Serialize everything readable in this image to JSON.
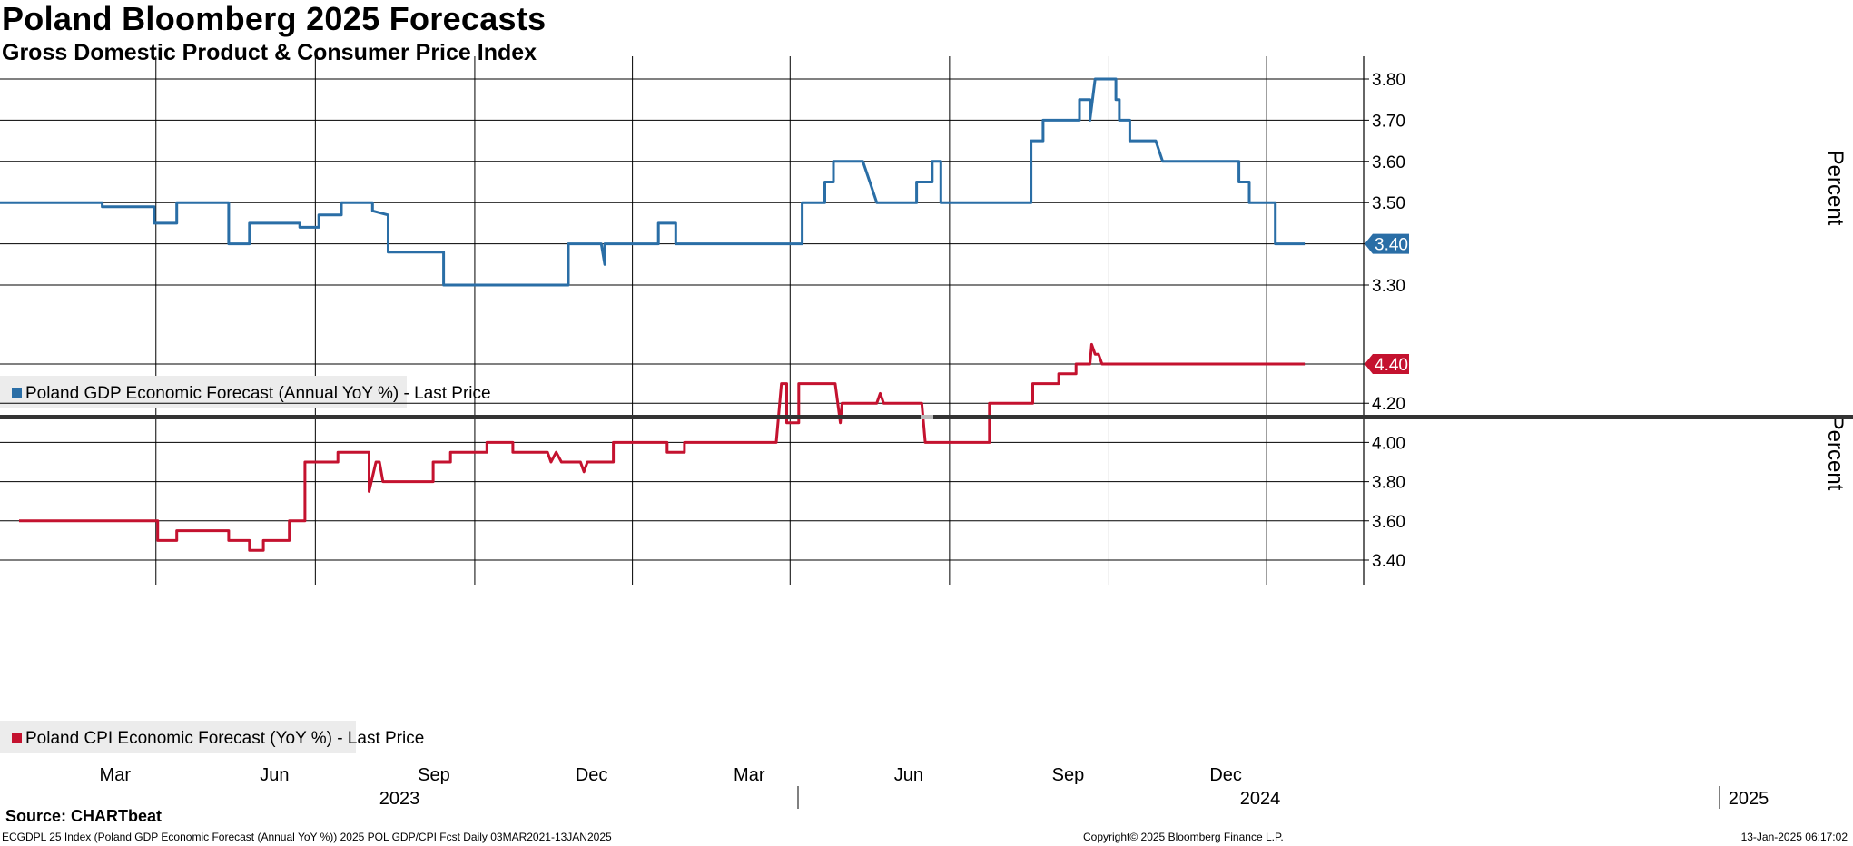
{
  "header": {
    "title": "Poland Bloomberg 2025 Forecasts",
    "subtitle": "Gross Domestic Product & Consumer Price Index"
  },
  "footer": {
    "source": "Source: CHARTbeat",
    "left": "ECGDPL 25 Index (Poland GDP Economic Forecast (Annual YoY %)) 2025 POL GDP/CPI Fcst  Daily 03MAR2021-13JAN2025",
    "center": "Copyright© 2025 Bloomberg Finance L.P.",
    "right": "13-Jan-2025 06:17:02"
  },
  "colors": {
    "gdp": "#2a6ea6",
    "cpi": "#c4122f",
    "grid": "#000000"
  },
  "chart_data": [
    {
      "type": "line",
      "x_axis": {
        "month_ticks": [
          "Mar",
          "Jun",
          "Sep",
          "Dec",
          "Mar",
          "Jun",
          "Sep",
          "Dec"
        ],
        "year_labels": [
          "2023",
          "2024",
          "2025"
        ]
      },
      "ylabel": "Percent",
      "ylim": [
        3.22,
        3.85
      ],
      "yticks": [
        3.3,
        3.4,
        3.5,
        3.6,
        3.7,
        3.8
      ],
      "ytick_labels": [
        "3.30",
        "3.40",
        "3.50",
        "3.60",
        "3.70",
        "3.80"
      ],
      "last_value_label": "3.40",
      "series": [
        {
          "name": "Poland GDP Economic Forecast (Annual YoY %) - Last Price",
          "points": [
            [
              "2022-12-01",
              3.5
            ],
            [
              "2023-01-29",
              3.5
            ],
            [
              "2023-01-29",
              3.49
            ],
            [
              "2023-02-28",
              3.49
            ],
            [
              "2023-02-28",
              3.45
            ],
            [
              "2023-03-13",
              3.45
            ],
            [
              "2023-03-13",
              3.5
            ],
            [
              "2023-04-12",
              3.5
            ],
            [
              "2023-04-12",
              3.4
            ],
            [
              "2023-04-24",
              3.4
            ],
            [
              "2023-04-24",
              3.45
            ],
            [
              "2023-05-23",
              3.45
            ],
            [
              "2023-05-23",
              3.44
            ],
            [
              "2023-06-03",
              3.44
            ],
            [
              "2023-06-03",
              3.47
            ],
            [
              "2023-06-16",
              3.47
            ],
            [
              "2023-06-16",
              3.5
            ],
            [
              "2023-07-04",
              3.5
            ],
            [
              "2023-07-04",
              3.48
            ],
            [
              "2023-07-13",
              3.47
            ],
            [
              "2023-07-13",
              3.38
            ],
            [
              "2023-08-14",
              3.38
            ],
            [
              "2023-08-14",
              3.3
            ],
            [
              "2023-10-25",
              3.3
            ],
            [
              "2023-10-25",
              3.4
            ],
            [
              "2023-11-13",
              3.4
            ],
            [
              "2023-11-15",
              3.35
            ],
            [
              "2023-11-15",
              3.4
            ],
            [
              "2023-12-16",
              3.4
            ],
            [
              "2023-12-16",
              3.45
            ],
            [
              "2023-12-26",
              3.45
            ],
            [
              "2023-12-26",
              3.4
            ],
            [
              "2024-03-08",
              3.4
            ],
            [
              "2024-03-08",
              3.5
            ],
            [
              "2024-03-21",
              3.5
            ],
            [
              "2024-03-21",
              3.55
            ],
            [
              "2024-03-26",
              3.55
            ],
            [
              "2024-03-26",
              3.6
            ],
            [
              "2024-04-12",
              3.6
            ],
            [
              "2024-04-16",
              3.55
            ],
            [
              "2024-04-20",
              3.5
            ],
            [
              "2024-05-13",
              3.5
            ],
            [
              "2024-05-13",
              3.55
            ],
            [
              "2024-05-22",
              3.55
            ],
            [
              "2024-05-22",
              3.6
            ],
            [
              "2024-05-27",
              3.6
            ],
            [
              "2024-05-27",
              3.5
            ],
            [
              "2024-07-18",
              3.5
            ],
            [
              "2024-07-18",
              3.65
            ],
            [
              "2024-07-25",
              3.65
            ],
            [
              "2024-07-25",
              3.7
            ],
            [
              "2024-08-15",
              3.7
            ],
            [
              "2024-08-15",
              3.75
            ],
            [
              "2024-08-21",
              3.75
            ],
            [
              "2024-08-21",
              3.7
            ],
            [
              "2024-08-24",
              3.8
            ],
            [
              "2024-09-05",
              3.8
            ],
            [
              "2024-09-05",
              3.75
            ],
            [
              "2024-09-07",
              3.75
            ],
            [
              "2024-09-07",
              3.7
            ],
            [
              "2024-09-13",
              3.7
            ],
            [
              "2024-09-13",
              3.65
            ],
            [
              "2024-09-28",
              3.65
            ],
            [
              "2024-10-02",
              3.6
            ],
            [
              "2024-11-15",
              3.6
            ],
            [
              "2024-11-15",
              3.55
            ],
            [
              "2024-11-21",
              3.55
            ],
            [
              "2024-11-21",
              3.5
            ],
            [
              "2024-12-06",
              3.5
            ],
            [
              "2024-12-06",
              3.4
            ],
            [
              "2024-12-23",
              3.4
            ]
          ]
        }
      ]
    },
    {
      "type": "line",
      "ylabel": "Percent",
      "ylim": [
        3.33,
        4.58
      ],
      "yticks": [
        3.4,
        3.6,
        3.8,
        4.0,
        4.2,
        4.4
      ],
      "ytick_labels": [
        "3.40",
        "3.60",
        "3.80",
        "4.00",
        "4.20",
        "4.40"
      ],
      "last_value_label": "4.40",
      "series": [
        {
          "name": "Poland CPI Economic Forecast (YoY %) - Last Price",
          "points": [
            [
              "2022-12-12",
              3.6
            ],
            [
              "2023-03-02",
              3.6
            ],
            [
              "2023-03-02",
              3.5
            ],
            [
              "2023-03-13",
              3.5
            ],
            [
              "2023-03-13",
              3.55
            ],
            [
              "2023-04-12",
              3.55
            ],
            [
              "2023-04-12",
              3.5
            ],
            [
              "2023-04-24",
              3.5
            ],
            [
              "2023-04-24",
              3.45
            ],
            [
              "2023-05-02",
              3.45
            ],
            [
              "2023-05-02",
              3.5
            ],
            [
              "2023-05-17",
              3.5
            ],
            [
              "2023-05-17",
              3.6
            ],
            [
              "2023-05-26",
              3.6
            ],
            [
              "2023-05-26",
              3.9
            ],
            [
              "2023-06-14",
              3.9
            ],
            [
              "2023-06-14",
              3.95
            ],
            [
              "2023-07-02",
              3.95
            ],
            [
              "2023-07-02",
              3.75
            ],
            [
              "2023-07-06",
              3.9
            ],
            [
              "2023-07-08",
              3.9
            ],
            [
              "2023-07-10",
              3.8
            ],
            [
              "2023-08-08",
              3.8
            ],
            [
              "2023-08-08",
              3.9
            ],
            [
              "2023-08-18",
              3.9
            ],
            [
              "2023-08-18",
              3.95
            ],
            [
              "2023-09-08",
              3.95
            ],
            [
              "2023-09-08",
              4.0
            ],
            [
              "2023-09-23",
              4.0
            ],
            [
              "2023-09-23",
              3.95
            ],
            [
              "2023-10-13",
              3.95
            ],
            [
              "2023-10-15",
              3.9
            ],
            [
              "2023-10-18",
              3.95
            ],
            [
              "2023-10-21",
              3.9
            ],
            [
              "2023-11-01",
              3.9
            ],
            [
              "2023-11-03",
              3.85
            ],
            [
              "2023-11-05",
              3.9
            ],
            [
              "2023-11-20",
              3.9
            ],
            [
              "2023-11-20",
              4.0
            ],
            [
              "2023-12-21",
              4.0
            ],
            [
              "2023-12-21",
              3.95
            ],
            [
              "2023-12-31",
              3.95
            ],
            [
              "2023-12-31",
              4.0
            ],
            [
              "2024-02-22",
              4.0
            ],
            [
              "2024-02-25",
              4.3
            ],
            [
              "2024-02-28",
              4.3
            ],
            [
              "2024-02-28",
              4.1
            ],
            [
              "2024-03-06",
              4.1
            ],
            [
              "2024-03-06",
              4.3
            ],
            [
              "2024-03-27",
              4.3
            ],
            [
              "2024-03-30",
              4.1
            ],
            [
              "2024-03-31",
              4.2
            ],
            [
              "2024-04-20",
              4.2
            ],
            [
              "2024-04-22",
              4.25
            ],
            [
              "2024-04-24",
              4.2
            ],
            [
              "2024-05-16",
              4.2
            ],
            [
              "2024-05-18",
              4.0
            ],
            [
              "2024-06-24",
              4.0
            ],
            [
              "2024-06-24",
              4.2
            ],
            [
              "2024-07-19",
              4.2
            ],
            [
              "2024-07-19",
              4.3
            ],
            [
              "2024-08-03",
              4.3
            ],
            [
              "2024-08-03",
              4.35
            ],
            [
              "2024-08-13",
              4.35
            ],
            [
              "2024-08-13",
              4.4
            ],
            [
              "2024-08-21",
              4.4
            ],
            [
              "2024-08-22",
              4.5
            ],
            [
              "2024-08-24",
              4.45
            ],
            [
              "2024-08-26",
              4.45
            ],
            [
              "2024-08-28",
              4.4
            ],
            [
              "2024-12-23",
              4.4
            ]
          ]
        }
      ]
    }
  ]
}
